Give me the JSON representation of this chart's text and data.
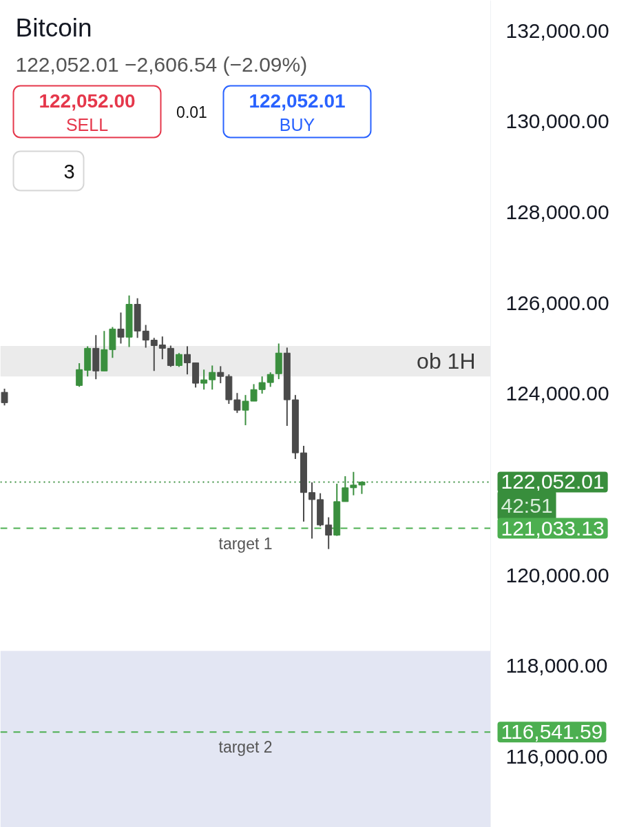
{
  "chart_data": {
    "type": "candlestick",
    "title": "Bitcoin",
    "subtitle": "122,052.01 −2,606.54 (−2.09%)",
    "categories": [
      null,
      null,
      null,
      null,
      null,
      null,
      null,
      null,
      null,
      null,
      null,
      null,
      null,
      null,
      null,
      null,
      null,
      null,
      null,
      null,
      null,
      null,
      null,
      null,
      null,
      null,
      null,
      null,
      null,
      null,
      null,
      null,
      null,
      null,
      null,
      null,
      null,
      null,
      null,
      null,
      null,
      null,
      null,
      null,
      null,
      null,
      null,
      null,
      null,
      null,
      null,
      null,
      null,
      null,
      null,
      null,
      null,
      null,
      null
    ],
    "ohlc": [
      [
        124030,
        124110,
        123740,
        123800
      ],
      null,
      null,
      null,
      null,
      null,
      null,
      null,
      null,
      [
        124180,
        124670,
        124150,
        124530
      ],
      [
        124515,
        125045,
        124380,
        125000
      ],
      [
        125000,
        125290,
        124320,
        124500
      ],
      [
        124500,
        125380,
        124500,
        124970
      ],
      [
        124970,
        125470,
        124790,
        125425
      ],
      [
        125425,
        125790,
        125105,
        125245
      ],
      [
        125245,
        126165,
        125030,
        125970
      ],
      [
        125970,
        126105,
        125230,
        125380
      ],
      [
        125380,
        125515,
        125015,
        125180
      ],
      [
        125180,
        125230,
        124500,
        125060
      ],
      [
        125075,
        125260,
        124760,
        125000
      ],
      [
        125000,
        125060,
        124590,
        124620
      ],
      [
        124620,
        124895,
        124590,
        124865
      ],
      [
        124865,
        125045,
        124425,
        124680
      ],
      [
        124680,
        124680,
        124135,
        124230
      ],
      [
        124230,
        124530,
        124090,
        124305
      ],
      [
        124305,
        124620,
        124090,
        124470
      ],
      [
        124470,
        124605,
        124230,
        124380
      ],
      [
        124380,
        124425,
        123775,
        123865
      ],
      [
        123865,
        124015,
        123575,
        123635
      ],
      [
        123635,
        123970,
        123305,
        123835
      ],
      [
        123835,
        124210,
        123835,
        124090
      ],
      [
        124090,
        124380,
        124000,
        124245
      ],
      [
        124245,
        124470,
        124150,
        124425
      ],
      [
        124440,
        125105,
        124320,
        124895
      ],
      [
        124895,
        125015,
        123290,
        123865
      ],
      [
        123865,
        123970,
        122560,
        122695
      ],
      [
        122695,
        122850,
        121180,
        121820
      ],
      [
        121820,
        122045,
        120805,
        121665
      ],
      [
        121665,
        121805,
        121075,
        121105
      ],
      [
        121105,
        121275,
        120575,
        120880
      ],
      [
        120880,
        122015,
        120865,
        121620
      ],
      [
        121620,
        122180,
        121620,
        121925
      ],
      [
        121925,
        122275,
        121760,
        121985
      ],
      [
        121985,
        122065,
        121790,
        122052
      ],
      null,
      null,
      null,
      null,
      null,
      null,
      null,
      null,
      null,
      null,
      null,
      null,
      null,
      null,
      null
    ],
    "colors": [
      "#4a4a4a",
      null,
      null,
      null,
      null,
      null,
      null,
      null,
      null,
      "#3a8f3e",
      "#3a8f3e",
      "#4a4a4a",
      "#3a8f3e",
      "#3a8f3e",
      "#4a4a4a",
      "#3a8f3e",
      "#4a4a4a",
      "#4a4a4a",
      "#4a4a4a",
      "#4a4a4a",
      "#4a4a4a",
      "#3a8f3e",
      "#4a4a4a",
      "#4a4a4a",
      "#3a8f3e",
      "#3a8f3e",
      "#4a4a4a",
      "#4a4a4a",
      "#4a4a4a",
      "#3a8f3e",
      "#3a8f3e",
      "#3a8f3e",
      "#3a8f3e",
      "#3a8f3e",
      "#4a4a4a",
      "#4a4a4a",
      "#4a4a4a",
      "#4a4a4a",
      "#4a4a4a",
      "#4a4a4a",
      "#3a8f3e",
      "#3a8f3e",
      "#3a8f3e",
      "#3a8f3e",
      null,
      null,
      null,
      null,
      null,
      null,
      null,
      null,
      null,
      null,
      null,
      null,
      null,
      null,
      null
    ],
    "ylim": [
      114440,
      132670
    ],
    "yticks": [
      {
        "value": 116000,
        "label": "116,000.00"
      },
      {
        "value": 118000,
        "label": "118,000.00"
      },
      {
        "value": 120000,
        "label": "120,000.00"
      },
      {
        "value": 124000,
        "label": "124,000.00"
      },
      {
        "value": 126000,
        "label": "126,000.00"
      },
      {
        "value": 128000,
        "label": "128,000.00"
      },
      {
        "value": 130000,
        "label": "130,000.00"
      },
      {
        "value": 132000,
        "label": "132,000.00"
      }
    ],
    "tick_labels": "y",
    "ref_lines": [
      {
        "axis": "y",
        "value": 122052.01,
        "label": null,
        "color": "#388e3c",
        "line_style": "dotted"
      },
      {
        "axis": "y",
        "value": 121033.13,
        "label": "target 1",
        "color": "#4caf50",
        "line_style": "dashed"
      },
      {
        "axis": "y",
        "value": 116541.59,
        "label": "target 2",
        "color": "#4caf50",
        "line_style": "dashed"
      }
    ],
    "bands": [
      {
        "axis": "y",
        "from": 124380,
        "to": 125050,
        "label": "ob 1H",
        "color": "#ebebeb"
      },
      {
        "axis": "y",
        "from": 114440,
        "to": 118330,
        "label": null,
        "color": "#e3e6f3"
      }
    ],
    "annotations": [
      "122,052.00",
      "SELL",
      "0.01",
      "122,052.01",
      "BUY",
      "3",
      "122,052.01",
      "42:51",
      "121,033.13",
      "116,541.59"
    ]
  }
}
